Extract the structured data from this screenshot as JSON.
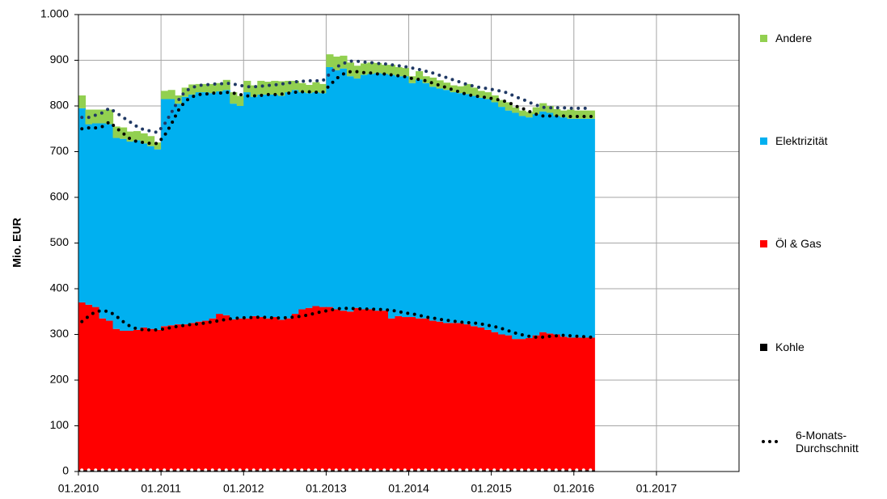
{
  "chart_data": {
    "type": "stacked_bar",
    "y_label": "Mio. EUR",
    "x": [
      "01.2010",
      "02.2010",
      "03.2010",
      "04.2010",
      "05.2010",
      "06.2010",
      "07.2010",
      "08.2010",
      "09.2010",
      "10.2010",
      "11.2010",
      "12.2010",
      "01.2011",
      "02.2011",
      "03.2011",
      "04.2011",
      "05.2011",
      "06.2011",
      "07.2011",
      "08.2011",
      "09.2011",
      "10.2011",
      "11.2011",
      "12.2011",
      "01.2012",
      "02.2012",
      "03.2012",
      "04.2012",
      "05.2012",
      "06.2012",
      "07.2012",
      "08.2012",
      "09.2012",
      "10.2012",
      "11.2012",
      "12.2012",
      "01.2013",
      "02.2013",
      "03.2013",
      "04.2013",
      "05.2013",
      "06.2013",
      "07.2013",
      "08.2013",
      "09.2013",
      "10.2013",
      "11.2013",
      "12.2013",
      "01.2014",
      "02.2014",
      "03.2014",
      "04.2014",
      "05.2014",
      "06.2014",
      "07.2014",
      "08.2014",
      "09.2014",
      "10.2014",
      "11.2014",
      "12.2014",
      "01.2015",
      "02.2015",
      "03.2015",
      "04.2015",
      "05.2015",
      "06.2015",
      "07.2015",
      "08.2015",
      "09.2015",
      "10.2015",
      "11.2015",
      "12.2015",
      "01.2016",
      "02.2016",
      "03.2016"
    ],
    "xlim": [
      "01.2010",
      "01.2018"
    ],
    "xticks": [
      "01.2010",
      "01.2011",
      "01.2012",
      "01.2013",
      "01.2014",
      "01.2015",
      "01.2016",
      "01.2017"
    ],
    "ylim": [
      0,
      1000
    ],
    "yticks": [
      0,
      100,
      200,
      300,
      400,
      500,
      600,
      700,
      800,
      900,
      {
        "value": 1000,
        "label": "1.000"
      }
    ],
    "grid": true,
    "series": [
      {
        "name": "Kohle",
        "color": "#000000",
        "values": [
          3,
          3,
          3,
          3,
          3,
          3,
          3,
          3,
          3,
          3,
          3,
          3,
          3,
          3,
          3,
          3,
          3,
          3,
          3,
          3,
          3,
          3,
          3,
          3,
          3,
          3,
          3,
          3,
          3,
          3,
          3,
          3,
          3,
          3,
          3,
          3,
          3,
          3,
          3,
          3,
          3,
          3,
          3,
          3,
          3,
          3,
          3,
          3,
          3,
          3,
          3,
          3,
          3,
          3,
          3,
          3,
          3,
          3,
          3,
          3,
          3,
          3,
          3,
          3,
          3,
          3,
          3,
          3,
          3,
          3,
          3,
          3,
          3,
          3,
          3
        ]
      },
      {
        "name": "Öl & Gas",
        "color": "#ff0000",
        "values": [
          367,
          362,
          357,
          332,
          327,
          309,
          305,
          305,
          307,
          312,
          309,
          307,
          315,
          317,
          319,
          319,
          322,
          325,
          327,
          332,
          342,
          339,
          330,
          332,
          332,
          337,
          335,
          332,
          335,
          329,
          332,
          342,
          352,
          355,
          359,
          357,
          357,
          352,
          349,
          347,
          355,
          352,
          352,
          349,
          349,
          332,
          337,
          335,
          335,
          332,
          332,
          327,
          325,
          322,
          322,
          322,
          319,
          315,
          312,
          307,
          302,
          297,
          295,
          287,
          287,
          289,
          295,
          302,
          299,
          297,
          292,
          290,
          290,
          290,
          290
        ]
      },
      {
        "name": "Elektrizität",
        "color": "#00b0f0",
        "values": [
          425,
          395,
          402,
          427,
          430,
          418,
          420,
          414,
          415,
          403,
          400,
          395,
          497,
          495,
          483,
          498,
          500,
          502,
          500,
          493,
          487,
          493,
          472,
          465,
          495,
          480,
          487,
          490,
          487,
          490,
          495,
          490,
          475,
          470,
          468,
          468,
          525,
          523,
          530,
          515,
          502,
          513,
          515,
          520,
          518,
          533,
          525,
          527,
          512,
          523,
          515,
          512,
          510,
          510,
          505,
          503,
          504,
          504,
          503,
          505,
          503,
          498,
          492,
          495,
          488,
          483,
          484,
          483,
          483,
          478,
          480,
          479,
          479,
          479,
          479
        ]
      },
      {
        "name": "Andere",
        "color": "#92d050",
        "values": [
          28,
          32,
          30,
          30,
          32,
          25,
          25,
          22,
          20,
          22,
          22,
          15,
          18,
          20,
          18,
          20,
          22,
          18,
          18,
          20,
          18,
          22,
          25,
          22,
          25,
          25,
          30,
          28,
          30,
          32,
          25,
          20,
          20,
          18,
          22,
          20,
          28,
          30,
          28,
          30,
          28,
          25,
          25,
          22,
          20,
          22,
          20,
          18,
          15,
          18,
          15,
          20,
          18,
          16,
          15,
          15,
          22,
          18,
          15,
          15,
          15,
          15,
          18,
          12,
          12,
          12,
          15,
          18,
          15,
          15,
          15,
          20,
          18,
          18,
          18
        ]
      }
    ],
    "average": {
      "name": "6-Monats-Durchschnitt",
      "series": [
        {
          "color": "#ffffff",
          "values": [
            3,
            3,
            3,
            3,
            3,
            3,
            3,
            3,
            3,
            3,
            3,
            3,
            3,
            3,
            3,
            3,
            3,
            3,
            3,
            3,
            3,
            3,
            3,
            3,
            3,
            3,
            3,
            3,
            3,
            3,
            3,
            3,
            3,
            3,
            3,
            3,
            3,
            3,
            3,
            3,
            3,
            3,
            3,
            3,
            3,
            3,
            3,
            3,
            3,
            3,
            3,
            3,
            3,
            3,
            3,
            3,
            3,
            3,
            3,
            3,
            3,
            3,
            3,
            3,
            3,
            3,
            3,
            3,
            3,
            3,
            3,
            3,
            3,
            3,
            3
          ]
        },
        {
          "color": "#000000",
          "values": [
            328,
            340,
            350,
            352,
            350,
            340,
            328,
            318,
            312,
            310,
            310,
            310,
            312,
            315,
            318,
            320,
            322,
            323,
            325,
            328,
            330,
            333,
            335,
            336,
            337,
            337,
            338,
            337,
            336,
            336,
            337,
            338,
            340,
            343,
            347,
            350,
            353,
            356,
            357,
            357,
            356,
            356,
            355,
            355,
            354,
            353,
            350,
            347,
            345,
            342,
            338,
            336,
            333,
            331,
            329,
            327,
            326,
            325,
            323,
            320,
            317,
            313,
            308,
            303,
            299,
            296,
            294,
            294,
            296,
            297,
            298,
            297,
            296,
            295,
            294
          ]
        },
        {
          "color": "#000000",
          "values": [
            750,
            752,
            752,
            755,
            765,
            752,
            740,
            728,
            722,
            720,
            718,
            718,
            735,
            760,
            790,
            810,
            820,
            825,
            826,
            828,
            828,
            830,
            828,
            825,
            822,
            822,
            823,
            825,
            825,
            826,
            828,
            830,
            831,
            831,
            830,
            830,
            845,
            860,
            870,
            875,
            875,
            873,
            872,
            870,
            870,
            868,
            866,
            864,
            860,
            858,
            855,
            850,
            845,
            840,
            835,
            830,
            825,
            822,
            820,
            818,
            815,
            812,
            808,
            800,
            795,
            788,
            782,
            778,
            778,
            778,
            778,
            777,
            777,
            777,
            777
          ]
        },
        {
          "color": "#1f3864",
          "values": [
            775,
            775,
            780,
            785,
            795,
            785,
            775,
            765,
            755,
            748,
            745,
            742,
            760,
            785,
            812,
            832,
            840,
            845,
            846,
            848,
            848,
            850,
            848,
            845,
            842,
            842,
            843,
            845,
            846,
            848,
            850,
            853,
            854,
            855,
            855,
            855,
            870,
            885,
            893,
            898,
            898,
            896,
            895,
            893,
            892,
            890,
            888,
            886,
            883,
            880,
            876,
            872,
            867,
            862,
            857,
            852,
            847,
            843,
            840,
            838,
            835,
            832,
            828,
            820,
            815,
            808,
            802,
            797,
            796,
            796,
            796,
            795,
            795,
            795,
            795
          ]
        }
      ]
    }
  }
}
